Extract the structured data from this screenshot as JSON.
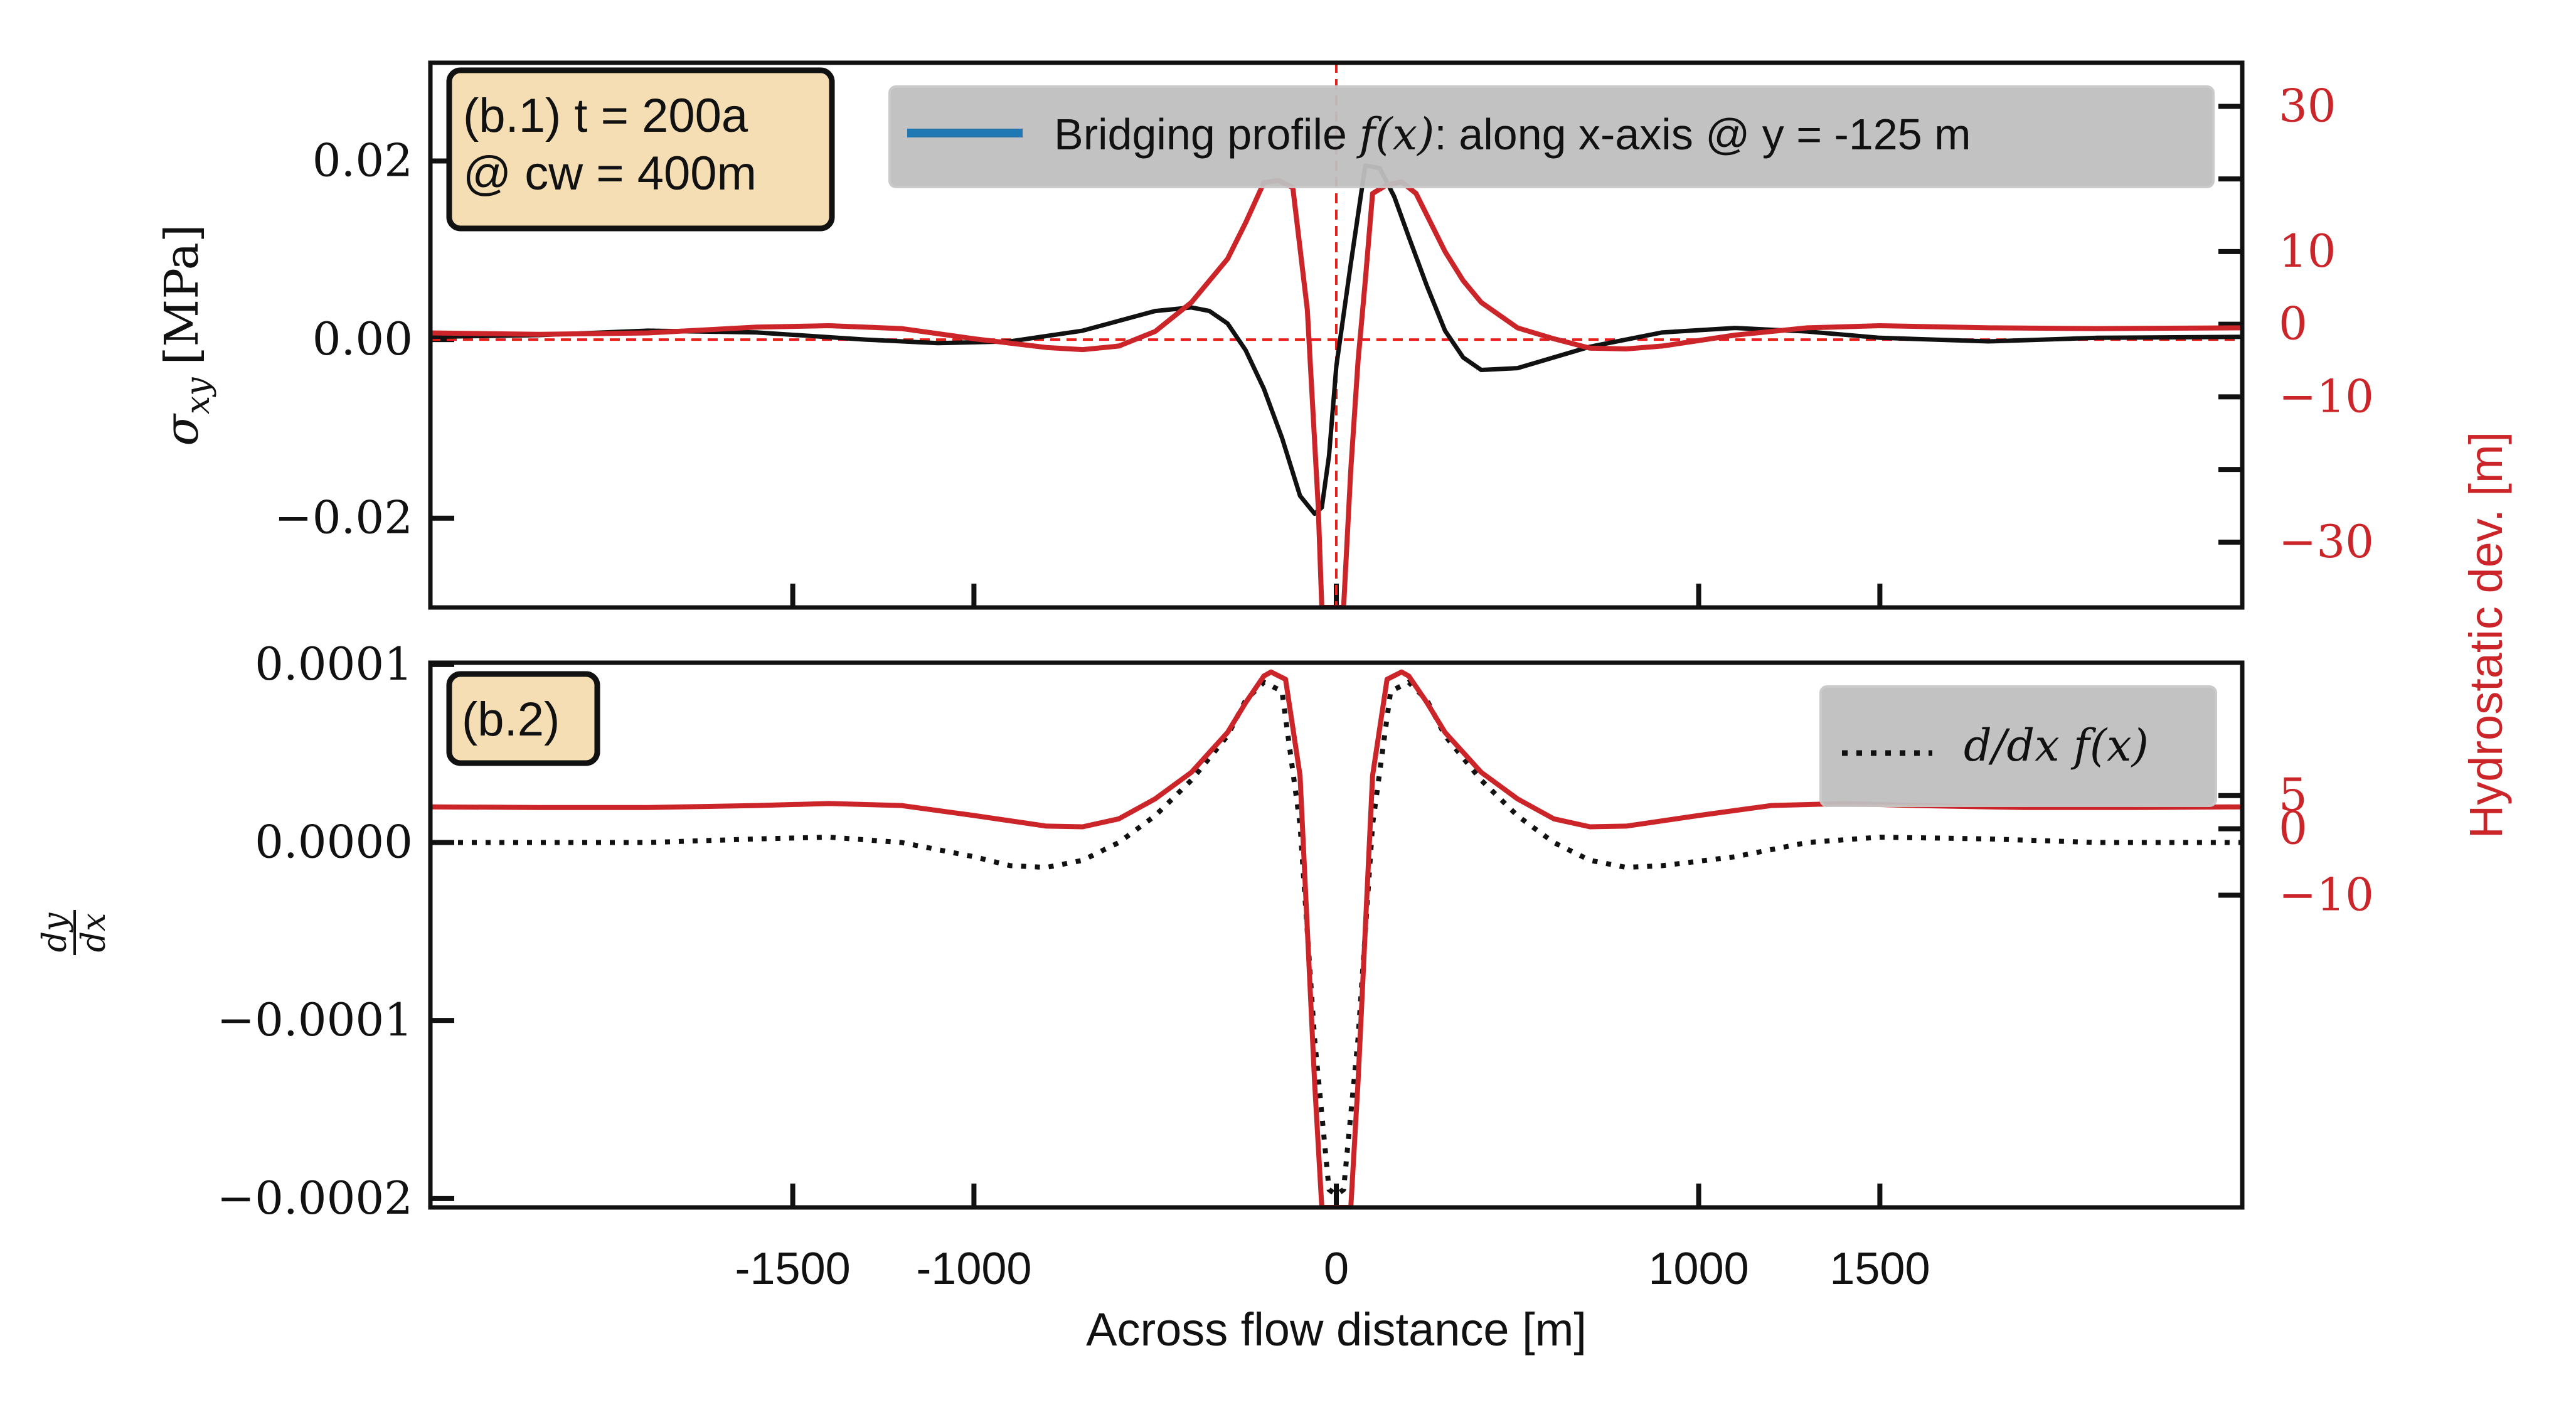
{
  "xlabel": "Across flow distance [m]",
  "x_ticks": [
    "-1500",
    "-1000",
    "0",
    "1000",
    "1500"
  ],
  "x_tick_values": [
    -1500,
    -1000,
    0,
    1000,
    1500
  ],
  "xlim": [
    -2500,
    2500
  ],
  "right_ylabel": "Hydrostatic dev. [m]",
  "colors": {
    "black": "#111111",
    "red": "#cc2529",
    "blue": "#1f77b4",
    "annot_bg": "#f5deb3",
    "legend_bg": "#bfbfbf"
  },
  "chart_data": [
    {
      "type": "line",
      "panel": "top",
      "annotation_line1": "(b.1) t = 200a",
      "annotation_line2": "@ cw = 400m",
      "legend_prefix": "Bridging profile ",
      "legend_math": "f(x)",
      "legend_suffix": ": along x-axis @ y = -125 m",
      "ylabel_symbol": "σ",
      "ylabel_sub": "xy",
      "ylabel_unit": "[MPa]",
      "ylim": [
        -0.03,
        0.031
      ],
      "y_ticks": [
        "0.02",
        "0.00",
        "−0.02"
      ],
      "y_tick_values": [
        0.02,
        0.0,
        -0.02
      ],
      "right_ylim": [
        -39,
        36
      ],
      "right_ticks": [
        "30",
        "10",
        "0",
        "−10",
        "−30"
      ],
      "right_tick_values": [
        30,
        10,
        0,
        -10,
        -30
      ],
      "extra_right_ticks": [
        20,
        -20
      ],
      "ref_lines": {
        "x": 0,
        "y": 0
      },
      "series": [
        {
          "axis": "left",
          "style": "solid",
          "color": "#111111",
          "x": [
            -2500,
            -2200,
            -1900,
            -1600,
            -1300,
            -1100,
            -900,
            -700,
            -500,
            -400,
            -350,
            -300,
            -250,
            -200,
            -150,
            -100,
            -60,
            -40,
            -20,
            0,
            40,
            80,
            120,
            160,
            200,
            250,
            300,
            350,
            400,
            500,
            700,
            900,
            1100,
            1300,
            1500,
            1800,
            2100,
            2500
          ],
          "y": [
            0.0003,
            0.0005,
            0.001,
            0.0008,
            0.0,
            -0.0004,
            -0.0002,
            0.001,
            0.0032,
            0.0036,
            0.0032,
            0.0018,
            -0.0012,
            -0.0055,
            -0.011,
            -0.0175,
            -0.0195,
            -0.0188,
            -0.013,
            -0.003,
            0.0085,
            0.0195,
            0.0192,
            0.016,
            0.0115,
            0.006,
            0.001,
            -0.002,
            -0.0034,
            -0.0032,
            -0.0008,
            0.0008,
            0.0013,
            0.0009,
            0.0002,
            -0.0002,
            0.0002,
            0.0003
          ]
        },
        {
          "axis": "right",
          "style": "solid",
          "color": "#cc2529",
          "x": [
            -2500,
            -2200,
            -1900,
            -1600,
            -1400,
            -1200,
            -1000,
            -800,
            -700,
            -600,
            -500,
            -400,
            -300,
            -250,
            -200,
            -160,
            -120,
            -80,
            -50,
            -40,
            -20,
            0,
            20,
            40,
            60,
            80,
            100,
            140,
            180,
            220,
            260,
            300,
            350,
            400,
            500,
            600,
            700,
            800,
            900,
            1100,
            1300,
            1500,
            1800,
            2100,
            2500
          ],
          "y": [
            -1.2,
            -1.4,
            -1.2,
            -0.4,
            -0.2,
            -0.6,
            -2.0,
            -3.2,
            -3.5,
            -3.0,
            -1.0,
            3.0,
            9.0,
            14.0,
            19.5,
            19.8,
            18.8,
            2.0,
            -25.0,
            -39.0,
            -39.0,
            -39.0,
            -39.0,
            -20.0,
            -5.0,
            6.0,
            18.0,
            19.2,
            19.6,
            18.0,
            14.0,
            10.0,
            6.0,
            3.0,
            -0.5,
            -2.0,
            -3.3,
            -3.4,
            -3.0,
            -1.5,
            -0.5,
            -0.2,
            -0.5,
            -0.6,
            -0.5
          ]
        }
      ]
    },
    {
      "type": "line",
      "panel": "bottom",
      "annotation": "(b.2)",
      "legend_math": "d/dx f(x)",
      "ylabel_num": "dy",
      "ylabel_den": "dx",
      "ylim": [
        -0.000205,
        0.000101
      ],
      "y_ticks": [
        "0.0001",
        "0.0000",
        "−0.0001",
        "−0.0002"
      ],
      "y_tick_values": [
        0.0001,
        0.0,
        -0.0001,
        -0.0002
      ],
      "right_ylim": [
        -57,
        25
      ],
      "right_ticks": [
        "5",
        "0",
        "−10"
      ],
      "right_tick_values": [
        5,
        0,
        -10
      ],
      "series": [
        {
          "axis": "left",
          "style": "dotted",
          "color": "#111111",
          "x": [
            -2500,
            -2200,
            -1900,
            -1600,
            -1400,
            -1200,
            -1000,
            -900,
            -800,
            -700,
            -600,
            -500,
            -400,
            -300,
            -250,
            -200,
            -150,
            -100,
            -60,
            -20,
            0,
            20,
            60,
            100,
            150,
            200,
            250,
            300,
            400,
            500,
            600,
            700,
            800,
            900,
            1100,
            1300,
            1500,
            1800,
            2100,
            2500
          ],
          "y": [
            0.0,
            0.0,
            0.0,
            2e-06,
            3e-06,
            0.0,
            -8e-06,
            -1.3e-05,
            -1.4e-05,
            -1e-05,
            0.0,
            1.5e-05,
            3.5e-05,
            6e-05,
            8e-05,
            9e-05,
            8.5e-05,
            1e-05,
            -0.00011,
            -0.000195,
            -0.000198,
            -0.000195,
            -0.00011,
            1e-05,
            8.5e-05,
            9e-05,
            8e-05,
            6e-05,
            3.5e-05,
            1.5e-05,
            0.0,
            -1e-05,
            -1.4e-05,
            -1.3e-05,
            -8e-06,
            0.0,
            3e-06,
            2e-06,
            0.0,
            0.0
          ]
        },
        {
          "axis": "right",
          "style": "solid",
          "color": "#cc2529",
          "x": [
            -2500,
            -2200,
            -1900,
            -1600,
            -1400,
            -1200,
            -1000,
            -800,
            -700,
            -600,
            -500,
            -400,
            -300,
            -250,
            -200,
            -180,
            -140,
            -100,
            -60,
            -40,
            -20,
            0,
            20,
            40,
            60,
            100,
            140,
            180,
            200,
            250,
            300,
            400,
            500,
            600,
            700,
            800,
            1000,
            1200,
            1400,
            1600,
            1900,
            2200,
            2500
          ],
          "y": [
            3.3,
            3.2,
            3.2,
            3.5,
            3.8,
            3.5,
            2.0,
            0.4,
            0.3,
            1.5,
            4.5,
            8.5,
            14.5,
            19.0,
            23.0,
            23.6,
            22.5,
            8.0,
            -38.0,
            -57.0,
            -57.0,
            -57.0,
            -57.0,
            -57.0,
            -38.0,
            8.0,
            22.5,
            23.6,
            23.0,
            19.0,
            14.5,
            8.5,
            4.5,
            1.5,
            0.3,
            0.4,
            2.0,
            3.5,
            3.8,
            3.5,
            3.2,
            3.2,
            3.3
          ]
        }
      ]
    }
  ]
}
